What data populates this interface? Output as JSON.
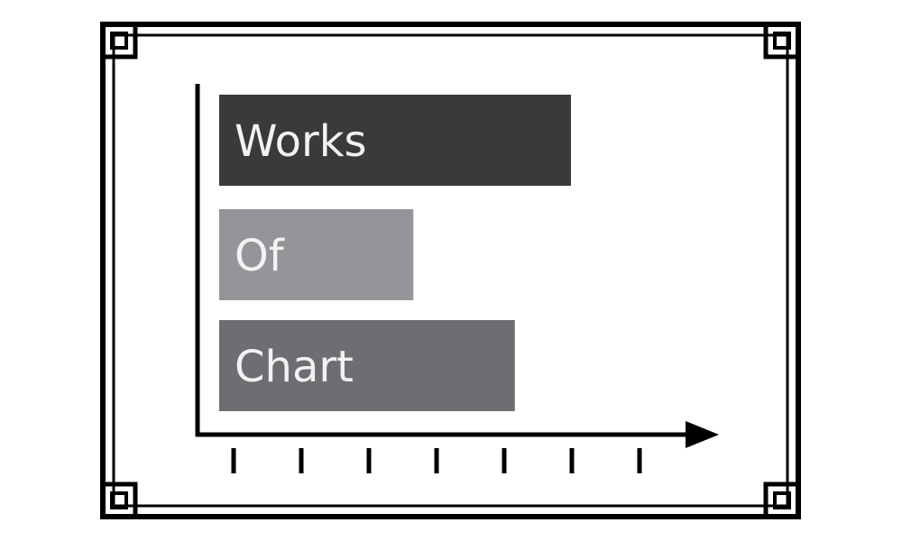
{
  "chart_data": {
    "type": "bar",
    "orientation": "horizontal",
    "categories": [
      "Works",
      "Of",
      "Chart"
    ],
    "values": [
      5.2,
      2.87,
      4.37
    ],
    "xlim": [
      0,
      7
    ],
    "x_ticks": 7,
    "tick_labels_shown": false,
    "grid": false,
    "legend": "none",
    "title": "",
    "xlabel": "",
    "ylabel": ""
  },
  "colors": {
    "frame": "#000000",
    "axis": "#000000",
    "bars": [
      "#3a3a3c",
      "#939598",
      "#6d6e71"
    ],
    "label_text": "#f2f2f2"
  }
}
